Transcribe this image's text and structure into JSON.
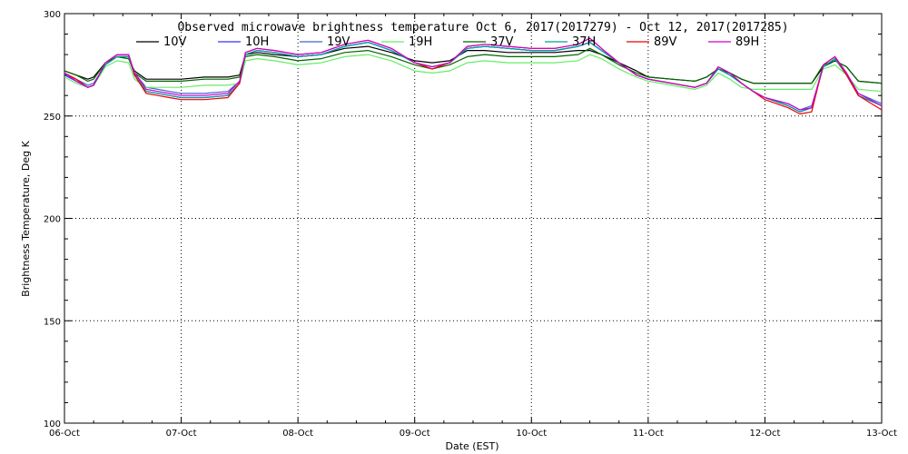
{
  "chart_data": {
    "type": "line",
    "title": "Observed microwave brightness temperature Oct  6, 2017(2017279) - Oct 12, 2017(2017285)",
    "xlabel": "Date (EST)",
    "ylabel": "Brightness Temperature, Deg K",
    "xlim": [
      0,
      7
    ],
    "ylim": [
      100,
      300
    ],
    "x_ticks": [
      {
        "value": 0,
        "label": "06-Oct"
      },
      {
        "value": 1,
        "label": "07-Oct"
      },
      {
        "value": 2,
        "label": "08-Oct"
      },
      {
        "value": 3,
        "label": "09-Oct"
      },
      {
        "value": 4,
        "label": "10-Oct"
      },
      {
        "value": 5,
        "label": "11-Oct"
      },
      {
        "value": 6,
        "label": "12-Oct"
      },
      {
        "value": 7,
        "label": "13-Oct"
      }
    ],
    "y_ticks": [
      {
        "value": 100,
        "label": "100"
      },
      {
        "value": 150,
        "label": "150"
      },
      {
        "value": 200,
        "label": "200"
      },
      {
        "value": 250,
        "label": "250"
      },
      {
        "value": 300,
        "label": "300"
      }
    ],
    "grid": true,
    "legend_position": "top",
    "x": [
      0,
      0.1,
      0.2,
      0.25,
      0.35,
      0.45,
      0.55,
      0.6,
      0.7,
      0.8,
      0.9,
      1.0,
      1.2,
      1.4,
      1.5,
      1.55,
      1.65,
      1.8,
      2.0,
      2.2,
      2.4,
      2.6,
      2.8,
      3.0,
      3.15,
      3.3,
      3.45,
      3.6,
      3.8,
      4.0,
      4.2,
      4.4,
      4.5,
      4.6,
      4.75,
      4.9,
      5.0,
      5.2,
      5.4,
      5.5,
      5.6,
      5.7,
      5.8,
      5.9,
      6.0,
      6.2,
      6.3,
      6.4,
      6.5,
      6.6,
      6.7,
      6.8,
      7.0
    ],
    "series": [
      {
        "name": "10V",
        "color": "#000000",
        "values": [
          272,
          270,
          268,
          269,
          276,
          279,
          278,
          272,
          268,
          268,
          268,
          268,
          269,
          269,
          270,
          280,
          281,
          280,
          279,
          280,
          283,
          284,
          281,
          277,
          276,
          277,
          282,
          282,
          281,
          281,
          281,
          282,
          282,
          280,
          276,
          272,
          269,
          268,
          267,
          269,
          273,
          271,
          268,
          266,
          266,
          266,
          266,
          266,
          274,
          277,
          274,
          267,
          266
        ]
      },
      {
        "name": "10H",
        "color": "#3333ff",
        "values": [
          270,
          267,
          264,
          265,
          275,
          279,
          279,
          270,
          262,
          261,
          260,
          259,
          259,
          260,
          266,
          280,
          282,
          281,
          279,
          280,
          284,
          286,
          282,
          276,
          274,
          276,
          283,
          284,
          283,
          282,
          282,
          284,
          286,
          282,
          276,
          270,
          268,
          266,
          264,
          266,
          273,
          270,
          266,
          262,
          259,
          255,
          252,
          254,
          274,
          278,
          270,
          260,
          255
        ]
      },
      {
        "name": "19V",
        "color": "#4466cc",
        "values": [
          271,
          268,
          265,
          266,
          275,
          279,
          279,
          271,
          264,
          263,
          262,
          261,
          261,
          262,
          267,
          280,
          282,
          281,
          279,
          280,
          284,
          286,
          282,
          276,
          274,
          276,
          283,
          284,
          283,
          282,
          282,
          284,
          286,
          282,
          276,
          270,
          268,
          266,
          264,
          266,
          273,
          270,
          266,
          262,
          259,
          256,
          253,
          255,
          274,
          278,
          270,
          261,
          256
        ]
      },
      {
        "name": "19H",
        "color": "#66ee66",
        "values": [
          269,
          266,
          264,
          265,
          274,
          277,
          276,
          268,
          264,
          264,
          264,
          264,
          265,
          265,
          266,
          277,
          278,
          277,
          275,
          276,
          279,
          280,
          277,
          272,
          271,
          272,
          276,
          277,
          276,
          276,
          276,
          277,
          280,
          278,
          273,
          269,
          267,
          265,
          263,
          265,
          271,
          268,
          264,
          263,
          263,
          263,
          263,
          263,
          273,
          275,
          270,
          263,
          262
        ]
      },
      {
        "name": "37V",
        "color": "#006600",
        "values": [
          272,
          270,
          267,
          268,
          276,
          279,
          278,
          271,
          267,
          267,
          267,
          267,
          268,
          268,
          269,
          279,
          280,
          279,
          277,
          278,
          281,
          282,
          279,
          275,
          273,
          275,
          279,
          280,
          279,
          279,
          279,
          280,
          283,
          280,
          275,
          271,
          269,
          268,
          267,
          269,
          273,
          271,
          268,
          266,
          266,
          266,
          266,
          266,
          275,
          277,
          274,
          267,
          266
        ]
      },
      {
        "name": "37H",
        "color": "#00a0a0",
        "values": [
          271,
          267,
          264,
          265,
          275,
          279,
          279,
          270,
          262,
          261,
          260,
          259,
          259,
          260,
          266,
          280,
          282,
          281,
          279,
          280,
          284,
          286,
          282,
          276,
          274,
          276,
          283,
          284,
          283,
          282,
          282,
          284,
          286,
          282,
          276,
          270,
          268,
          266,
          264,
          266,
          273,
          270,
          266,
          262,
          259,
          255,
          252,
          254,
          274,
          278,
          270,
          260,
          255
        ]
      },
      {
        "name": "89V",
        "color": "#ee0000",
        "values": [
          271,
          268,
          264,
          265,
          276,
          280,
          280,
          270,
          261,
          260,
          259,
          258,
          258,
          259,
          266,
          281,
          283,
          282,
          280,
          281,
          285,
          287,
          283,
          276,
          273,
          276,
          284,
          285,
          284,
          283,
          283,
          285,
          288,
          283,
          276,
          270,
          268,
          266,
          264,
          266,
          274,
          271,
          266,
          262,
          258,
          254,
          251,
          252,
          275,
          279,
          270,
          260,
          253
        ]
      },
      {
        "name": "89H",
        "color": "#cc00cc",
        "values": [
          271,
          267,
          264,
          265,
          276,
          280,
          280,
          271,
          263,
          262,
          261,
          260,
          260,
          261,
          267,
          281,
          283,
          282,
          280,
          281,
          285,
          287,
          283,
          276,
          274,
          276,
          284,
          285,
          284,
          283,
          283,
          285,
          288,
          283,
          276,
          270,
          268,
          266,
          264,
          266,
          274,
          271,
          266,
          262,
          259,
          256,
          253,
          254,
          275,
          279,
          271,
          261,
          255
        ]
      }
    ]
  }
}
